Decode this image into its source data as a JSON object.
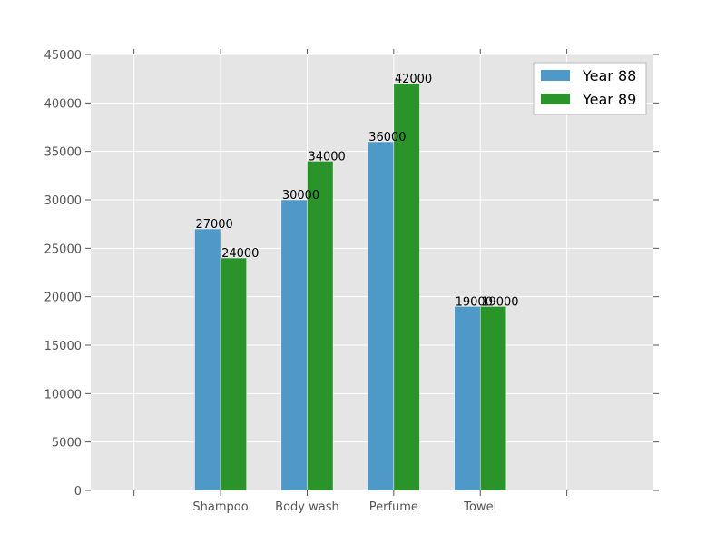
{
  "chart_data": {
    "type": "bar",
    "categories": [
      "Shampoo",
      "Body wash",
      "Perfume",
      "Towel"
    ],
    "series": [
      {
        "name": "Year 88",
        "values": [
          27000,
          30000,
          36000,
          19000
        ],
        "color": "#4f99c8"
      },
      {
        "name": "Year 89",
        "values": [
          24000,
          34000,
          42000,
          19000
        ],
        "color": "#2a942a"
      }
    ],
    "title": "",
    "xlabel": "",
    "ylabel": "",
    "ylim": [
      0,
      45000
    ],
    "yticks": [
      0,
      5000,
      10000,
      15000,
      20000,
      25000,
      30000,
      35000,
      40000,
      45000
    ],
    "grid": true,
    "legend_position": "top-right",
    "background_color": "#e5e5e5"
  }
}
